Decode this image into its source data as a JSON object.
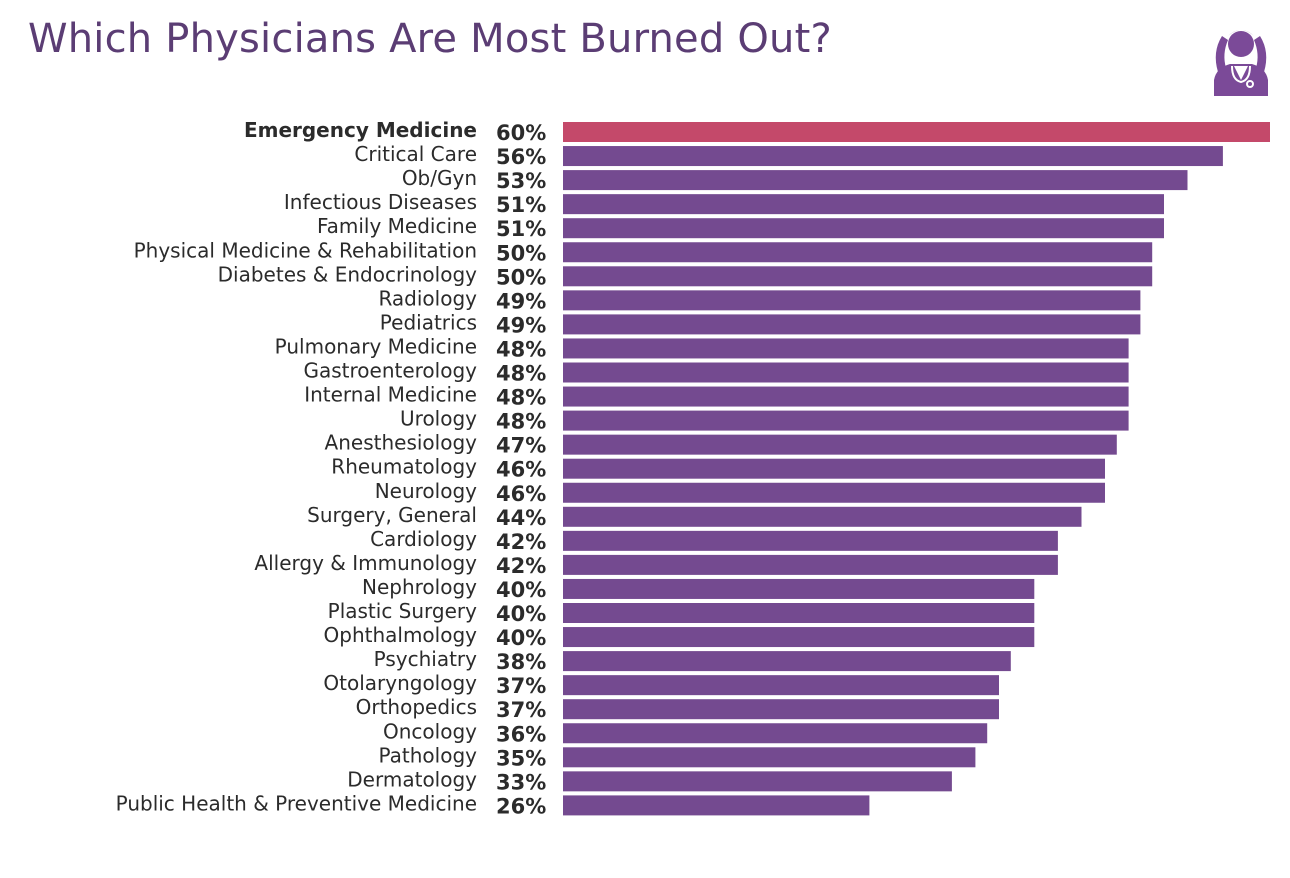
{
  "colors": {
    "bar": "#744a90",
    "highlight": "#c4496a",
    "title": "#5b3d74",
    "icon": "#7b4a98"
  },
  "header": {
    "icon_name": "stressed-physician-icon"
  },
  "chart_data": {
    "type": "bar",
    "orientation": "horizontal",
    "title": "Which Physicians Are Most Burned Out?",
    "categories": [
      "Emergency Medicine",
      "Critical Care",
      "Ob/Gyn",
      "Infectious Diseases",
      "Family Medicine",
      "Physical Medicine & Rehabilitation",
      "Diabetes & Endocrinology",
      "Radiology",
      "Pediatrics",
      "Pulmonary Medicine",
      "Gastroenterology",
      "Internal Medicine",
      "Urology",
      "Anesthesiology",
      "Rheumatology",
      "Neurology",
      "Surgery, General",
      "Cardiology",
      "Allergy & Immunology",
      "Nephrology",
      "Plastic Surgery",
      "Ophthalmology",
      "Psychiatry",
      "Otolaryngology",
      "Orthopedics",
      "Oncology",
      "Pathology",
      "Dermatology",
      "Public Health & Preventive Medicine"
    ],
    "values": [
      60,
      56,
      53,
      51,
      51,
      50,
      50,
      49,
      49,
      48,
      48,
      48,
      48,
      47,
      46,
      46,
      44,
      42,
      42,
      40,
      40,
      40,
      38,
      37,
      37,
      36,
      35,
      33,
      26
    ],
    "value_labels": [
      "60%",
      "56%",
      "53%",
      "51%",
      "51%",
      "50%",
      "50%",
      "49%",
      "49%",
      "48%",
      "48%",
      "48%",
      "48%",
      "47%",
      "46%",
      "46%",
      "44%",
      "42%",
      "42%",
      "40%",
      "40%",
      "40%",
      "38%",
      "37%",
      "37%",
      "36%",
      "35%",
      "33%",
      "26%"
    ],
    "highlight_index": 0,
    "xlim": [
      0,
      60
    ],
    "grid": false,
    "legend": "none"
  }
}
